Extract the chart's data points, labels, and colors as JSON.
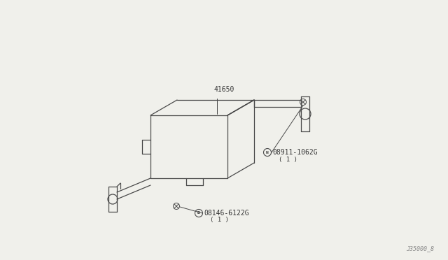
{
  "bg_color": "#f0f0eb",
  "line_color": "#4a4a4a",
  "text_color": "#333333",
  "title_label": "41650",
  "part1_label": "08911-1062G",
  "part1_sub": "( 1 )",
  "part2_label": "08146-6122G",
  "part2_sub": "( 1 )",
  "watermark": "J35000_8",
  "figsize": [
    6.4,
    3.72
  ],
  "dpi": 100
}
